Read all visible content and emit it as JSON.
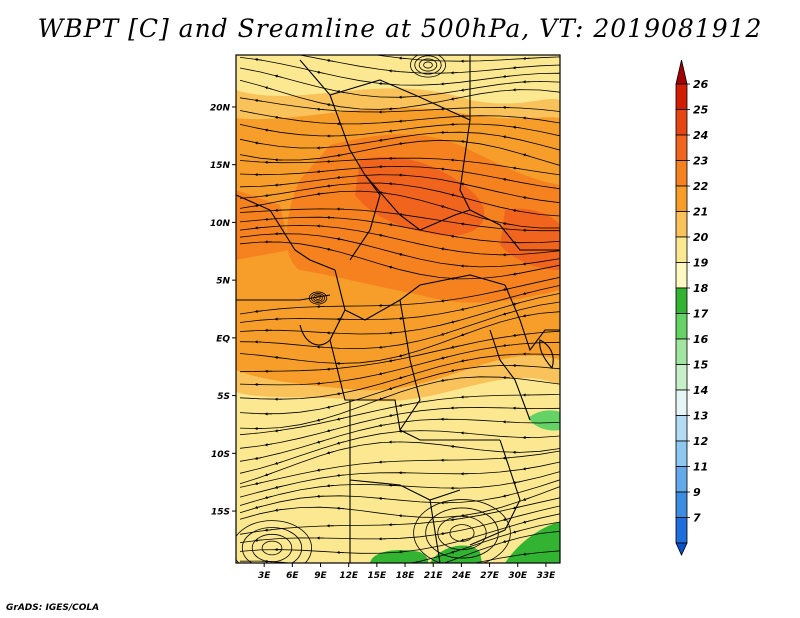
{
  "title": "WBPT [C] and Sreamline at 500hPa, VT: 2019081912",
  "footer": "GrADS: IGES/COLA",
  "map": {
    "lat_labels": [
      "20N",
      "15N",
      "10N",
      "5N",
      "EQ",
      "5S",
      "10S",
      "15S"
    ],
    "lat_values": [
      20,
      15,
      10,
      5,
      0,
      -5,
      -10,
      -15
    ],
    "lon_labels": [
      "3E",
      "6E",
      "9E",
      "12E",
      "15E",
      "18E",
      "21E",
      "24E",
      "27E",
      "30E",
      "33E"
    ],
    "lon_values": [
      3,
      6,
      9,
      12,
      15,
      18,
      21,
      24,
      27,
      30,
      33
    ],
    "lon_range": [
      0,
      34.5
    ],
    "lat_range": [
      -19.5,
      24.5
    ]
  },
  "colorbar": {
    "labels": [
      "26",
      "25",
      "24",
      "23",
      "22",
      "21",
      "20",
      "19",
      "18",
      "17",
      "16",
      "15",
      "14",
      "13",
      "12",
      "11",
      "9",
      "7"
    ],
    "colors": [
      "#a50000",
      "#d21e00",
      "#e64614",
      "#f0641e",
      "#f5821e",
      "#f79e2a",
      "#f9c25a",
      "#fbe890",
      "#fff8c0",
      "#32b432",
      "#64d264",
      "#a0e6a0",
      "#c8f0c8",
      "#e6f6f6",
      "#b4dcf5",
      "#8cc8f0",
      "#64aaeb",
      "#3c8ce1",
      "#1e6edc",
      "#0a50c8"
    ]
  }
}
